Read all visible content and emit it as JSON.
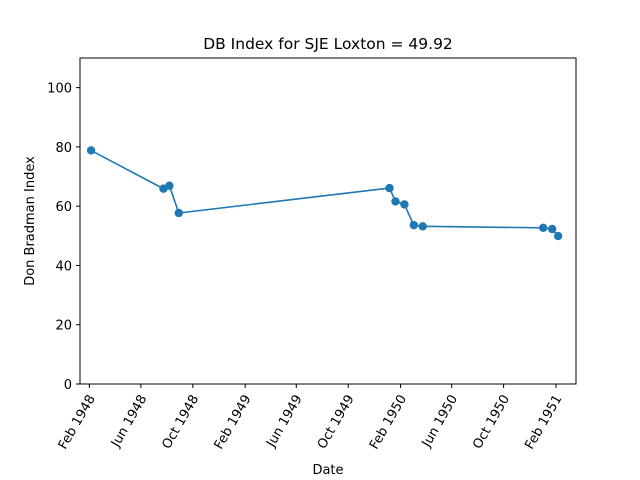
{
  "chart_data": {
    "type": "line",
    "title": "DB Index for SJE Loxton = 49.92",
    "xlabel": "Date",
    "ylabel": "Don Bradman Index",
    "x_axis": "date",
    "xlim": [
      "1948-01-10",
      "1951-03-20"
    ],
    "ylim": [
      0,
      110
    ],
    "x_ticks": [
      {
        "date": "1948-02-01",
        "label": "Feb 1948"
      },
      {
        "date": "1948-06-01",
        "label": "Jun 1948"
      },
      {
        "date": "1948-10-01",
        "label": "Oct 1948"
      },
      {
        "date": "1949-02-01",
        "label": "Feb 1949"
      },
      {
        "date": "1949-06-01",
        "label": "Jun 1949"
      },
      {
        "date": "1949-10-01",
        "label": "Oct 1949"
      },
      {
        "date": "1950-02-01",
        "label": "Feb 1950"
      },
      {
        "date": "1950-06-01",
        "label": "Jun 1950"
      },
      {
        "date": "1950-10-01",
        "label": "Oct 1950"
      },
      {
        "date": "1951-02-01",
        "label": "Feb 1951"
      }
    ],
    "y_ticks": [
      0,
      20,
      40,
      60,
      80,
      100
    ],
    "grid": false,
    "series": [
      {
        "color": "#1f77b4",
        "marker": "circle",
        "points": [
          {
            "x": "1948-02-05",
            "y": 78.8
          },
          {
            "x": "1948-07-24",
            "y": 65.9
          },
          {
            "x": "1948-08-07",
            "y": 66.9
          },
          {
            "x": "1948-08-29",
            "y": 57.7
          },
          {
            "x": "1950-01-06",
            "y": 66.1
          },
          {
            "x": "1950-01-20",
            "y": 61.6
          },
          {
            "x": "1950-02-10",
            "y": 60.6
          },
          {
            "x": "1950-03-04",
            "y": 53.6
          },
          {
            "x": "1950-03-25",
            "y": 53.2
          },
          {
            "x": "1951-01-02",
            "y": 52.7
          },
          {
            "x": "1951-01-23",
            "y": 52.3
          },
          {
            "x": "1951-02-06",
            "y": 49.92
          }
        ]
      }
    ]
  }
}
